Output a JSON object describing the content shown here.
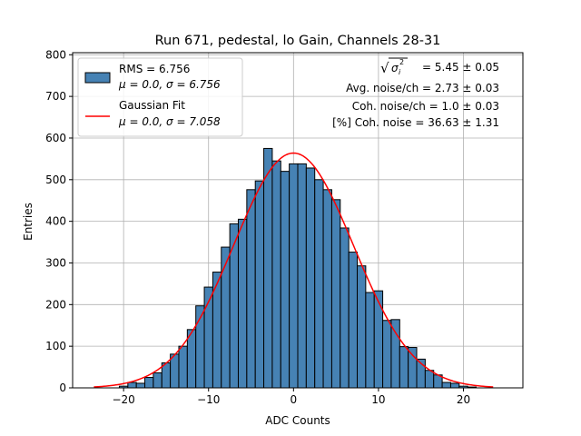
{
  "chart_data": {
    "type": "bar",
    "title": "Run 671, pedestal, lo Gain, Channels 28-31",
    "xlabel": "ADC Counts",
    "ylabel": "Entries",
    "xlim": [
      -26,
      27
    ],
    "ylim": [
      0,
      805
    ],
    "xticks": [
      -20,
      -10,
      0,
      10,
      20
    ],
    "yticks": [
      0,
      100,
      200,
      300,
      400,
      500,
      600,
      700,
      800
    ],
    "grid": true,
    "bin_width": 1,
    "bins": [
      {
        "x": -20,
        "count": 4
      },
      {
        "x": -19,
        "count": 13
      },
      {
        "x": -18,
        "count": 11
      },
      {
        "x": -17,
        "count": 25
      },
      {
        "x": -16,
        "count": 36
      },
      {
        "x": -15,
        "count": 60
      },
      {
        "x": -14,
        "count": 81
      },
      {
        "x": -13,
        "count": 100
      },
      {
        "x": -12,
        "count": 140
      },
      {
        "x": -11,
        "count": 197
      },
      {
        "x": -10,
        "count": 242
      },
      {
        "x": -9,
        "count": 278
      },
      {
        "x": -8,
        "count": 338
      },
      {
        "x": -7,
        "count": 394
      },
      {
        "x": -6,
        "count": 405
      },
      {
        "x": -5,
        "count": 476
      },
      {
        "x": -4,
        "count": 497
      },
      {
        "x": -3,
        "count": 575
      },
      {
        "x": -2,
        "count": 545
      },
      {
        "x": -1,
        "count": 520
      },
      {
        "x": 0,
        "count": 538
      },
      {
        "x": 1,
        "count": 538
      },
      {
        "x": 2,
        "count": 528
      },
      {
        "x": 3,
        "count": 500
      },
      {
        "x": 4,
        "count": 476
      },
      {
        "x": 5,
        "count": 452
      },
      {
        "x": 6,
        "count": 384
      },
      {
        "x": 7,
        "count": 326
      },
      {
        "x": 8,
        "count": 293
      },
      {
        "x": 9,
        "count": 229
      },
      {
        "x": 10,
        "count": 233
      },
      {
        "x": 11,
        "count": 162
      },
      {
        "x": 12,
        "count": 164
      },
      {
        "x": 13,
        "count": 99
      },
      {
        "x": 14,
        "count": 97
      },
      {
        "x": 15,
        "count": 69
      },
      {
        "x": 16,
        "count": 42
      },
      {
        "x": 17,
        "count": 31
      },
      {
        "x": 18,
        "count": 13
      },
      {
        "x": 19,
        "count": 11
      },
      {
        "x": 20,
        "count": 4
      },
      {
        "x": 21,
        "count": 2
      }
    ],
    "histogram_color": "#4682b4",
    "fit": {
      "label": "Gaussian Fit",
      "mu": 0.0,
      "sigma": 7.058,
      "amplitude": 564,
      "x_range": [
        -23.5,
        23.5
      ],
      "color": "#ff0000"
    },
    "legend": {
      "position": "upper left",
      "entries": [
        {
          "name": "RMS = 6.756",
          "detail": "μ = 0.0, σ = 6.756"
        },
        {
          "name": "Gaussian Fit",
          "detail": "μ = 0.0, σ = 7.058"
        }
      ]
    },
    "annotations": [
      {
        "prefix": "√",
        "symbol": "σ",
        "sub": "i",
        "sup": "2",
        "rest": " = 5.45 ± 0.05"
      },
      {
        "text": "Avg. noise/ch = 2.73 ± 0.03"
      },
      {
        "text": "Coh. noise/ch = 1.0 ± 0.03"
      },
      {
        "text": "[%] Coh. noise = 36.63 ± 1.31"
      }
    ]
  }
}
